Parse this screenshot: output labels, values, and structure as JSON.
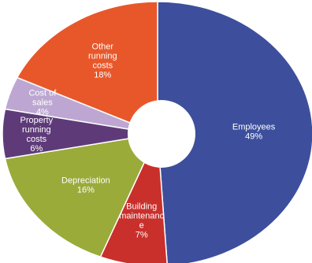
{
  "chart_data": {
    "type": "pie",
    "donut": true,
    "start_angle_deg": 90,
    "direction": "clockwise",
    "slices": [
      {
        "name": "Employees",
        "value": 49,
        "label_lines": [
          "Employees",
          "49%"
        ],
        "color": "#3d4f9c"
      },
      {
        "name": "Building maintenance",
        "value": 7,
        "label_lines": [
          "Building",
          "maintenanc",
          "e",
          "7%"
        ],
        "color": "#c9302c"
      },
      {
        "name": "Depreciation",
        "value": 16,
        "label_lines": [
          "Depreciation",
          "16%"
        ],
        "color": "#9aab3a"
      },
      {
        "name": "Property running costs",
        "value": 6,
        "label_lines": [
          "Property",
          "running",
          "costs",
          "6%"
        ],
        "color": "#5e3b78"
      },
      {
        "name": "Cost of sales",
        "value": 4,
        "label_lines": [
          "Cost of",
          "sales",
          "4%"
        ],
        "color": "#bda7d2"
      },
      {
        "name": "Other running costs",
        "value": 18,
        "label_lines": [
          "Other",
          "running",
          "costs",
          "18%"
        ],
        "color": "#e8572a"
      }
    ]
  }
}
